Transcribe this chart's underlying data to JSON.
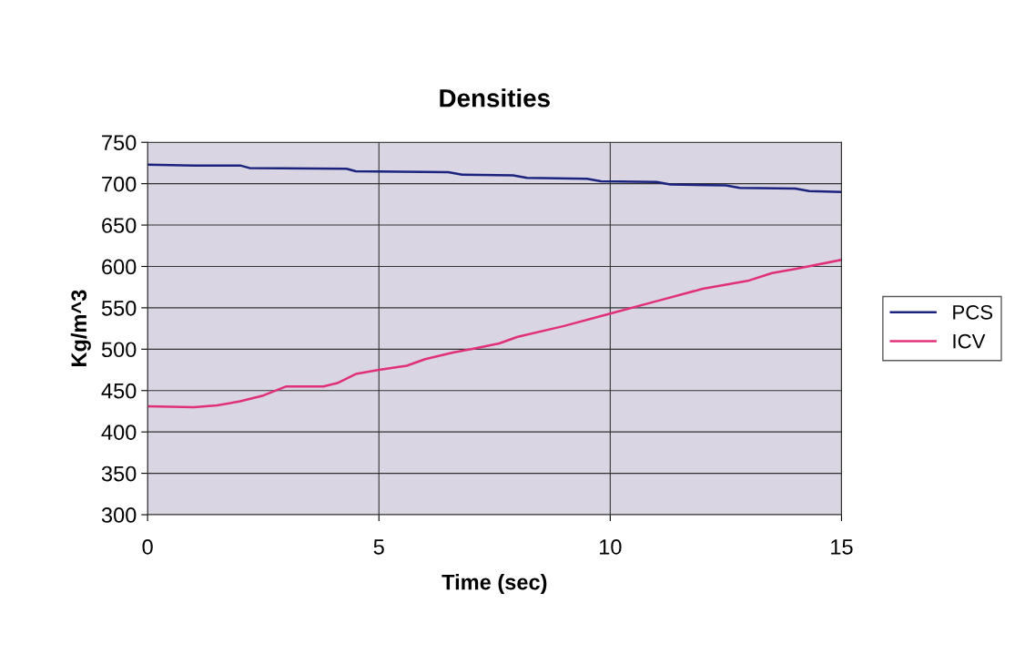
{
  "chart_data": {
    "type": "line",
    "title": "Densities",
    "xlabel": "Time (sec)",
    "ylabel": "Kg/m^3",
    "xlim": [
      0,
      15
    ],
    "xticks": [
      0,
      5,
      10,
      15
    ],
    "ylim": [
      300,
      750
    ],
    "yticks": [
      300,
      350,
      400,
      450,
      500,
      550,
      600,
      650,
      700,
      750
    ],
    "grid": true,
    "legend": "right",
    "marker": "none",
    "line_style": "solid",
    "series": [
      {
        "name": "PCS",
        "color": "#1a237e",
        "x": [
          0,
          1,
          2,
          2.2,
          4.3,
          4.5,
          6.5,
          6.8,
          7.9,
          8.2,
          9.5,
          9.8,
          11,
          11.3,
          12.5,
          12.8,
          14,
          14.3,
          15
        ],
        "values": [
          723,
          722,
          722,
          719,
          718,
          715,
          714,
          711,
          710,
          707,
          706,
          703,
          702,
          699,
          698,
          695,
          694,
          691,
          690
        ]
      },
      {
        "name": "ICV",
        "color": "#e0307a",
        "x": [
          0,
          1,
          1.5,
          2,
          2.5,
          3,
          3.8,
          4.1,
          4.5,
          5,
          5.6,
          6,
          6.6,
          7,
          7.6,
          8,
          9,
          10,
          11,
          12,
          13,
          13.5,
          14,
          15
        ],
        "values": [
          431,
          430,
          432,
          437,
          444,
          455,
          455,
          459,
          470,
          475,
          480,
          488,
          496,
          500,
          507,
          515,
          528,
          543,
          558,
          573,
          583,
          592,
          597,
          608
        ]
      }
    ]
  }
}
